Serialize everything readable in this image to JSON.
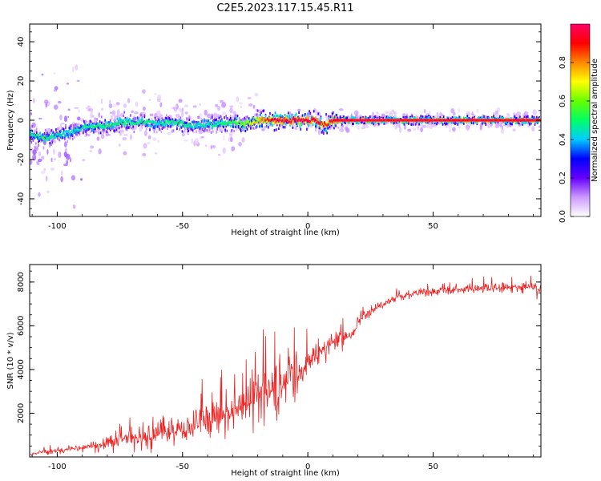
{
  "figure_title": "C2E5.2023.117.15.45.R11",
  "chart_data": [
    {
      "type": "heatmap",
      "title": "C2E5.2023.117.15.45.R11",
      "xlabel": "Height of straight line (km)",
      "ylabel": "Frequency (Hz)",
      "xlim": [
        -111,
        93
      ],
      "ylim": [
        -49,
        49
      ],
      "xticks": [
        -100,
        -50,
        0,
        50
      ],
      "yticks": [
        40,
        20,
        0,
        -20,
        -40
      ],
      "colorbar": {
        "label": "Normalized spectral amplitude",
        "range": [
          0,
          1
        ],
        "ticks": [
          0.0,
          0.2,
          0.4,
          0.6,
          0.8
        ],
        "colors": [
          "#ffffff",
          "#cc99ff",
          "#6600ff",
          "#0000ff",
          "#00ccff",
          "#00ff66",
          "#66ff00",
          "#ffff00",
          "#ff8800",
          "#ff0000",
          "#ff0066"
        ]
      },
      "ridge": {
        "x": [
          -111,
          -105,
          -100,
          -95,
          -90,
          -85,
          -80,
          -75,
          -70,
          -65,
          -60,
          -55,
          -50,
          -45,
          -40,
          -35,
          -30,
          -25,
          -20,
          -15,
          -10,
          -5,
          0,
          3,
          5,
          8,
          10,
          12,
          20,
          40,
          60,
          80,
          93
        ],
        "frequency": [
          -7,
          -9,
          -8,
          -6,
          -4,
          -3,
          -3,
          -1,
          -1,
          -1,
          -2,
          -1,
          -2,
          -3,
          -2,
          -2,
          -1,
          -2,
          0,
          0,
          0,
          0,
          0,
          0,
          -2,
          -2,
          0,
          0,
          0,
          0,
          0,
          0,
          0
        ],
        "amplitude": [
          0.45,
          0.5,
          0.45,
          0.45,
          0.45,
          0.5,
          0.5,
          0.5,
          0.5,
          0.5,
          0.45,
          0.5,
          0.5,
          0.45,
          0.45,
          0.5,
          0.55,
          0.6,
          0.75,
          0.9,
          0.95,
          0.95,
          0.95,
          0.95,
          0.9,
          0.9,
          0.95,
          0.95,
          0.95,
          0.95,
          0.95,
          0.95,
          0.95
        ]
      }
    },
    {
      "type": "line",
      "xlabel": "Height of straight line (km)",
      "ylabel": "SNR (10 * v/v)",
      "xlim": [
        -111,
        93
      ],
      "ylim": [
        0,
        8800
      ],
      "xticks": [
        -100,
        -50,
        0,
        50
      ],
      "yticks": [
        2000,
        4000,
        6000,
        8000
      ],
      "color": "#ee2222",
      "series": [
        {
          "name": "SNR",
          "x": [
            -111,
            -105,
            -100,
            -95,
            -90,
            -85,
            -80,
            -75,
            -70,
            -65,
            -60,
            -55,
            -50,
            -45,
            -40,
            -35,
            -30,
            -25,
            -20,
            -15,
            -10,
            -5,
            0,
            5,
            10,
            15,
            18,
            20,
            25,
            30,
            35,
            40,
            50,
            60,
            70,
            80,
            90,
            93
          ],
          "mean": [
            100,
            250,
            250,
            350,
            400,
            500,
            700,
            900,
            900,
            800,
            1000,
            1100,
            1200,
            1500,
            1600,
            1700,
            2000,
            2300,
            2700,
            3000,
            3300,
            3600,
            4200,
            4800,
            5200,
            5400,
            5600,
            6100,
            6700,
            7000,
            7300,
            7450,
            7550,
            7650,
            7700,
            7750,
            7800,
            7600
          ],
          "noise": [
            80,
            150,
            250,
            250,
            300,
            400,
            600,
            700,
            700,
            700,
            800,
            800,
            900,
            1000,
            1100,
            1200,
            1400,
            1600,
            1800,
            1900,
            1800,
            1500,
            1200,
            900,
            700,
            500,
            450,
            350,
            300,
            280,
            260,
            260,
            250,
            300,
            350,
            350,
            450,
            700
          ]
        }
      ]
    }
  ]
}
